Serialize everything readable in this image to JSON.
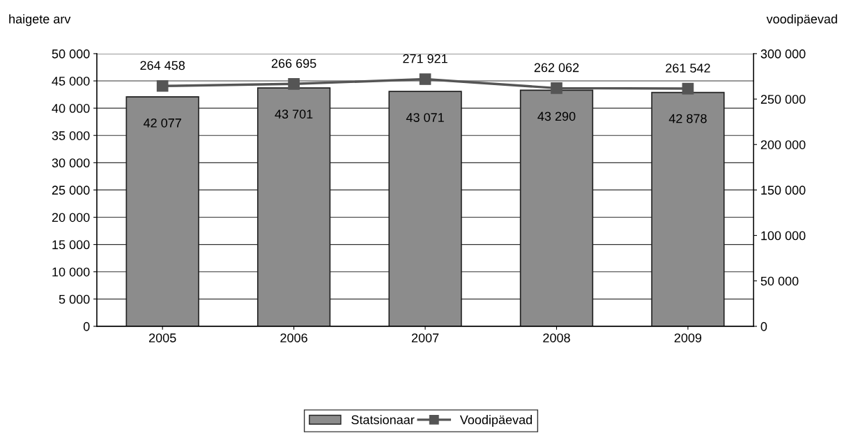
{
  "chart_data": {
    "type": "bar",
    "ylabel": "haigete arv",
    "y2label": "voodipäevad",
    "categories": [
      "2005",
      "2006",
      "2007",
      "2008",
      "2009"
    ],
    "series": [
      {
        "name": "Statsionaar",
        "color": "#8c8c8c",
        "values": [
          42077,
          43701,
          43071,
          43290,
          42878
        ],
        "value_labels": [
          "42 077",
          "43 701",
          "43 071",
          "43 290",
          "42 878"
        ]
      },
      {
        "name": "Voodipäevad",
        "type": "line",
        "axis": "y2",
        "color": "#555555",
        "marker": "square",
        "values": [
          264458,
          266695,
          271921,
          262062,
          261542
        ],
        "value_labels": [
          "264 458",
          "266 695",
          "271 921",
          "262 062",
          "261 542"
        ]
      }
    ],
    "ylim": [
      0,
      50000
    ],
    "yticks": [
      {
        "value": 0,
        "label": "0"
      },
      {
        "value": 5000,
        "label": "5 000"
      },
      {
        "value": 10000,
        "label": "10 000"
      },
      {
        "value": 15000,
        "label": "15 000"
      },
      {
        "value": 20000,
        "label": "20 000"
      },
      {
        "value": 25000,
        "label": "25 000"
      },
      {
        "value": 30000,
        "label": "30 000"
      },
      {
        "value": 35000,
        "label": "35 000"
      },
      {
        "value": 40000,
        "label": "40 000"
      },
      {
        "value": 45000,
        "label": "45 000"
      },
      {
        "value": 50000,
        "label": "50 000"
      }
    ],
    "y2lim": [
      0,
      300000
    ],
    "y2ticks": [
      {
        "value": 0,
        "label": "0"
      },
      {
        "value": 50000,
        "label": "50 000"
      },
      {
        "value": 100000,
        "label": "100 000"
      },
      {
        "value": 150000,
        "label": "150 000"
      },
      {
        "value": 200000,
        "label": "200 000"
      },
      {
        "value": 250000,
        "label": "250 000"
      },
      {
        "value": 300000,
        "label": "300 000"
      }
    ],
    "grid": "y",
    "legend": "bottom"
  }
}
